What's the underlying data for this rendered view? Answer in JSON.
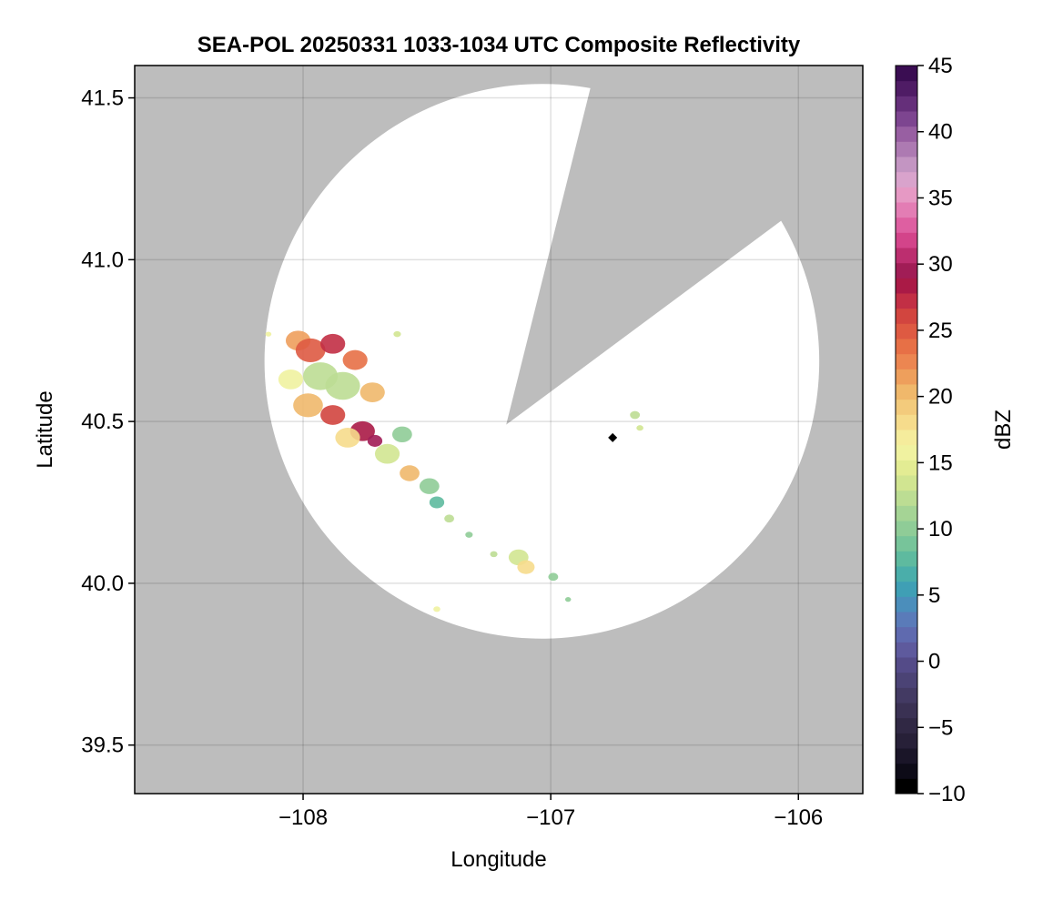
{
  "chart_data": {
    "type": "heatmap",
    "title": "SEA-POL 20250331 1033-1034 UTC Composite Reflectivity",
    "xlabel": "Longitude",
    "ylabel": "Latitude",
    "xlim": [
      -108.68,
      -105.74
    ],
    "ylim": [
      39.35,
      41.6
    ],
    "x_ticks": [
      -108,
      -107,
      -106
    ],
    "x_tick_labels": [
      "−108",
      "−107",
      "−106"
    ],
    "y_ticks": [
      39.5,
      40.0,
      40.5,
      41.0,
      41.5
    ],
    "y_tick_labels": [
      "39.5",
      "40.0",
      "40.5",
      "41.0",
      "41.5"
    ],
    "grid": true,
    "background_color": "#bdbdbd",
    "coverage_color": "#ffffff",
    "radar": {
      "center_lon": -107.18,
      "center_lat": 40.49,
      "radius_deg": 1.12,
      "blocked_sector_endpoints": [
        [
          -106.84,
          41.53
        ],
        [
          -106.07,
          41.12
        ]
      ]
    },
    "marker": {
      "lon": -106.75,
      "lat": 40.45,
      "color": "#000000"
    },
    "echoes": [
      {
        "lon": -108.02,
        "lat": 40.75,
        "dbz": 22,
        "r": 0.05
      },
      {
        "lon": -107.97,
        "lat": 40.72,
        "dbz": 25,
        "r": 0.06
      },
      {
        "lon": -107.88,
        "lat": 40.74,
        "dbz": 27,
        "r": 0.05
      },
      {
        "lon": -107.79,
        "lat": 40.69,
        "dbz": 24,
        "r": 0.05
      },
      {
        "lon": -107.93,
        "lat": 40.64,
        "dbz": 12,
        "r": 0.07
      },
      {
        "lon": -107.84,
        "lat": 40.61,
        "dbz": 12,
        "r": 0.07
      },
      {
        "lon": -107.72,
        "lat": 40.59,
        "dbz": 20,
        "r": 0.05
      },
      {
        "lon": -108.05,
        "lat": 40.63,
        "dbz": 16,
        "r": 0.05
      },
      {
        "lon": -107.98,
        "lat": 40.55,
        "dbz": 20,
        "r": 0.06
      },
      {
        "lon": -107.88,
        "lat": 40.52,
        "dbz": 26,
        "r": 0.05
      },
      {
        "lon": -107.76,
        "lat": 40.47,
        "dbz": 28,
        "r": 0.05
      },
      {
        "lon": -107.71,
        "lat": 40.44,
        "dbz": 30,
        "r": 0.03
      },
      {
        "lon": -107.82,
        "lat": 40.45,
        "dbz": 18,
        "r": 0.05
      },
      {
        "lon": -107.66,
        "lat": 40.4,
        "dbz": 14,
        "r": 0.05
      },
      {
        "lon": -107.6,
        "lat": 40.46,
        "dbz": 10,
        "r": 0.04
      },
      {
        "lon": -107.57,
        "lat": 40.34,
        "dbz": 20,
        "r": 0.04
      },
      {
        "lon": -107.49,
        "lat": 40.3,
        "dbz": 10,
        "r": 0.04
      },
      {
        "lon": -107.46,
        "lat": 40.25,
        "dbz": 8,
        "r": 0.03
      },
      {
        "lon": -107.41,
        "lat": 40.2,
        "dbz": 12,
        "r": 0.02
      },
      {
        "lon": -107.33,
        "lat": 40.15,
        "dbz": 10,
        "r": 0.015
      },
      {
        "lon": -107.62,
        "lat": 40.77,
        "dbz": 14,
        "r": 0.015
      },
      {
        "lon": -108.14,
        "lat": 40.77,
        "dbz": 16,
        "r": 0.012
      },
      {
        "lon": -107.13,
        "lat": 40.08,
        "dbz": 13,
        "r": 0.04
      },
      {
        "lon": -107.1,
        "lat": 40.05,
        "dbz": 18,
        "r": 0.035
      },
      {
        "lon": -106.99,
        "lat": 40.02,
        "dbz": 10,
        "r": 0.02
      },
      {
        "lon": -106.93,
        "lat": 39.95,
        "dbz": 10,
        "r": 0.012
      },
      {
        "lon": -107.23,
        "lat": 40.09,
        "dbz": 12,
        "r": 0.015
      },
      {
        "lon": -107.46,
        "lat": 39.92,
        "dbz": 16,
        "r": 0.014
      },
      {
        "lon": -106.66,
        "lat": 40.52,
        "dbz": 12,
        "r": 0.02
      },
      {
        "lon": -106.64,
        "lat": 40.48,
        "dbz": 14,
        "r": 0.014
      }
    ],
    "colorbar": {
      "label": "dBZ",
      "min": -10,
      "max": 45,
      "ticks": [
        -10,
        -5,
        0,
        5,
        10,
        15,
        20,
        25,
        30,
        35,
        40,
        45
      ],
      "tick_labels": [
        "−10",
        "−5",
        "0",
        "5",
        "10",
        "15",
        "20",
        "25",
        "30",
        "35",
        "40",
        "45"
      ],
      "colors": [
        "#000000",
        "#0d0b17",
        "#1a1528",
        "#272038",
        "#302844",
        "#3a3153",
        "#433a63",
        "#4b4375",
        "#544b88",
        "#5e5a9d",
        "#5f6aaf",
        "#5a7bb9",
        "#4b8ebb",
        "#3f9fb5",
        "#4aaeaa",
        "#5eba9f",
        "#77c49a",
        "#8fcc97",
        "#a5d495",
        "#bcdd93",
        "#d1e591",
        "#e3ec93",
        "#f0f2a0",
        "#f5ec9c",
        "#f6dc8c",
        "#f3cb7c",
        "#f0b86b",
        "#ee9f5c",
        "#ec8651",
        "#e77046",
        "#de5a42",
        "#d2453f",
        "#c22f45",
        "#aa1a46",
        "#a11d56",
        "#bc2e6f",
        "#d3448a",
        "#de5fa1",
        "#e37db4",
        "#e699c4",
        "#d9a3cc",
        "#c395c2",
        "#ad7ab2",
        "#985fa2",
        "#7d4590",
        "#652f7a",
        "#4f1c65",
        "#3a0d52"
      ]
    }
  }
}
